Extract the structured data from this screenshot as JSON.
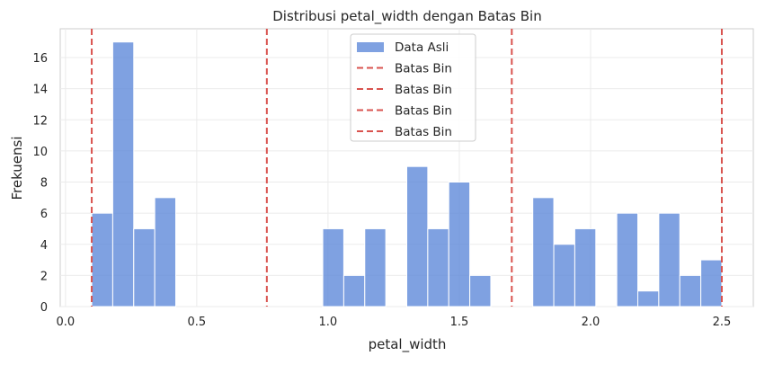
{
  "chart_data": {
    "type": "histogram",
    "title": "Distribusi petal_width dengan Batas Bin",
    "xlabel": "petal_width",
    "ylabel": "Frekuensi",
    "xlim": [
      -0.02,
      2.62
    ],
    "ylim": [
      0,
      17.85
    ],
    "xticks": [
      0.0,
      0.5,
      1.0,
      1.5,
      2.0,
      2.5
    ],
    "xtick_labels": [
      "0.0",
      "0.5",
      "1.0",
      "1.5",
      "2.0",
      "2.5"
    ],
    "yticks": [
      0,
      2,
      4,
      6,
      8,
      10,
      12,
      14,
      16
    ],
    "ytick_labels": [
      "0",
      "2",
      "4",
      "6",
      "8",
      "10",
      "12",
      "14",
      "16"
    ],
    "grid": true,
    "legend_position": "top-center",
    "bins": [
      {
        "x0": 0.1,
        "x1": 0.18,
        "count": 6
      },
      {
        "x0": 0.18,
        "x1": 0.26,
        "count": 17
      },
      {
        "x0": 0.26,
        "x1": 0.34,
        "count": 5
      },
      {
        "x0": 0.34,
        "x1": 0.42,
        "count": 7
      },
      {
        "x0": 0.42,
        "x1": 0.5,
        "count": 0
      },
      {
        "x0": 0.5,
        "x1": 0.58,
        "count": 0
      },
      {
        "x0": 0.58,
        "x1": 0.66,
        "count": 0
      },
      {
        "x0": 0.66,
        "x1": 0.74,
        "count": 0
      },
      {
        "x0": 0.74,
        "x1": 0.82,
        "count": 0
      },
      {
        "x0": 0.82,
        "x1": 0.9,
        "count": 0
      },
      {
        "x0": 0.9,
        "x1": 0.98,
        "count": 0
      },
      {
        "x0": 0.98,
        "x1": 1.06,
        "count": 5
      },
      {
        "x0": 1.06,
        "x1": 1.14,
        "count": 2
      },
      {
        "x0": 1.14,
        "x1": 1.22,
        "count": 5
      },
      {
        "x0": 1.22,
        "x1": 1.3,
        "count": 0
      },
      {
        "x0": 1.3,
        "x1": 1.38,
        "count": 9
      },
      {
        "x0": 1.38,
        "x1": 1.46,
        "count": 5
      },
      {
        "x0": 1.46,
        "x1": 1.54,
        "count": 8
      },
      {
        "x0": 1.54,
        "x1": 1.62,
        "count": 2
      },
      {
        "x0": 1.62,
        "x1": 1.7,
        "count": 0
      },
      {
        "x0": 1.7,
        "x1": 1.78,
        "count": 0
      },
      {
        "x0": 1.78,
        "x1": 1.86,
        "count": 7
      },
      {
        "x0": 1.86,
        "x1": 1.94,
        "count": 4
      },
      {
        "x0": 1.94,
        "x1": 2.02,
        "count": 5
      },
      {
        "x0": 2.02,
        "x1": 2.1,
        "count": 0
      },
      {
        "x0": 2.1,
        "x1": 2.18,
        "count": 6
      },
      {
        "x0": 2.18,
        "x1": 2.26,
        "count": 1
      },
      {
        "x0": 2.26,
        "x1": 2.34,
        "count": 6
      },
      {
        "x0": 2.34,
        "x1": 2.42,
        "count": 2
      },
      {
        "x0": 2.42,
        "x1": 2.5,
        "count": 3
      }
    ],
    "bin_edges": [
      0.1,
      0.767,
      1.7,
      2.5
    ],
    "series": [
      {
        "name": "Data Asli",
        "color": "#5b87d8"
      },
      {
        "name": "Batas Bin",
        "color": "#d9534f"
      },
      {
        "name": "Batas Bin",
        "color": "#d9534f"
      },
      {
        "name": "Batas Bin",
        "color": "#d9534f"
      },
      {
        "name": "Batas Bin",
        "color": "#d9534f"
      }
    ]
  }
}
